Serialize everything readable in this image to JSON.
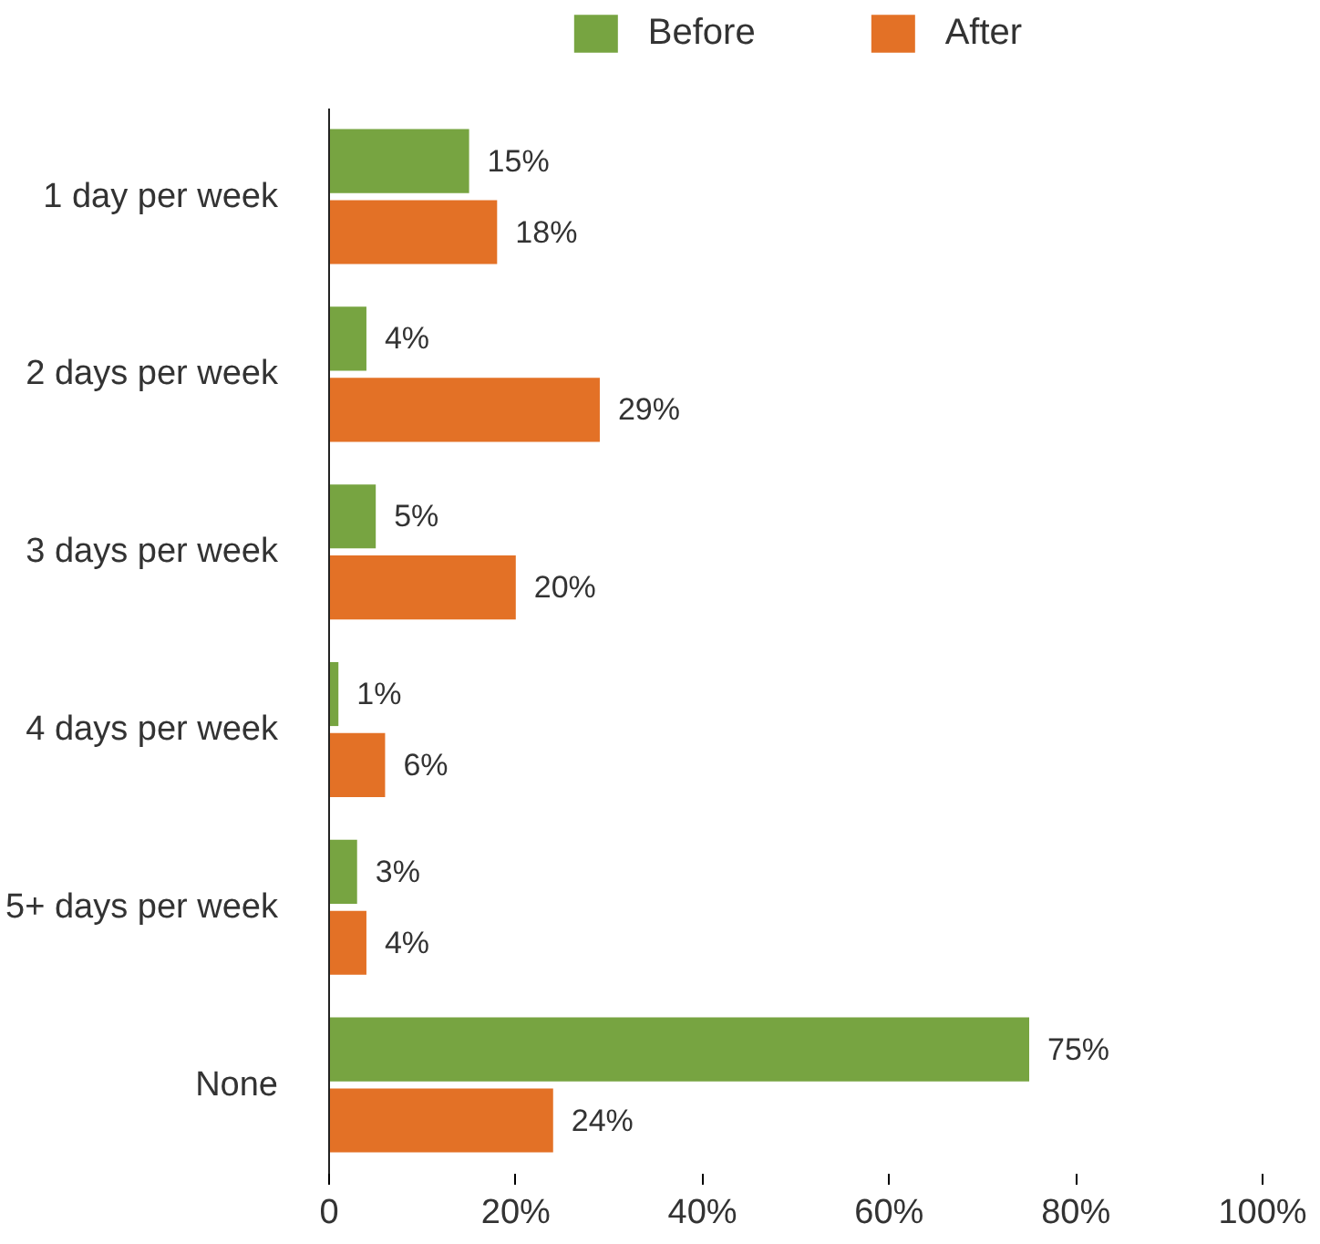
{
  "chart_data": {
    "type": "bar",
    "orientation": "horizontal",
    "categories": [
      "1 day per week",
      "2 days per week",
      "3 days per week",
      "4 days per week",
      "5+ days per week",
      "None"
    ],
    "series": [
      {
        "name": "Before",
        "color": "#77a441",
        "values": [
          15,
          4,
          5,
          1,
          3,
          75
        ],
        "value_labels": [
          "15%",
          "4%",
          "5%",
          "1%",
          "3%",
          "75%"
        ]
      },
      {
        "name": "After",
        "color": "#e37126",
        "values": [
          18,
          29,
          20,
          6,
          4,
          24
        ],
        "value_labels": [
          "18%",
          "29%",
          "20%",
          "6%",
          "4%",
          "24%"
        ]
      }
    ],
    "xlim": [
      0,
      100
    ],
    "xticks": [
      {
        "value": 0,
        "label": "0"
      },
      {
        "value": 20,
        "label": "20%"
      },
      {
        "value": 40,
        "label": "40%"
      },
      {
        "value": 60,
        "label": "60%"
      },
      {
        "value": 80,
        "label": "80%"
      },
      {
        "value": 100,
        "label": "100%"
      }
    ],
    "legend": "top",
    "grid": false
  }
}
